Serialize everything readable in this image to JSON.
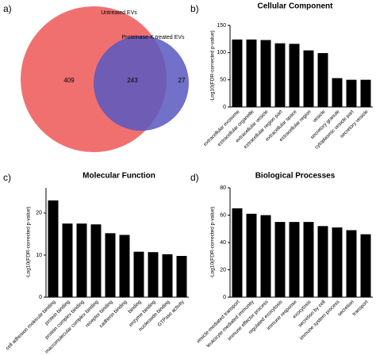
{
  "chart_data": [
    {
      "type": "venn",
      "panel_label": "a)",
      "sets": [
        {
          "name": "Untreated EVs",
          "color": "#f07070"
        },
        {
          "name": "Proteinase-K treated EVs",
          "color": "#5858bf"
        }
      ],
      "regions": [
        "Untreated EVs only",
        "both",
        "Proteinase-K treated EVs only"
      ],
      "values": [
        409,
        243,
        27
      ]
    },
    {
      "type": "bar",
      "panel_label": "b)",
      "title": "Cellular Component",
      "y_label": "-Log10(FDR-corrected p-value)",
      "categories": [
        "extracellular exosome",
        "extracellular organelle",
        "extracellular vesicle",
        "extracellular region part",
        "extracellular space",
        "extracellular region",
        "vesicle",
        "secretory granule",
        "cytoplasmic vesicle part",
        "secretory vesicle"
      ],
      "values": [
        124,
        124,
        123,
        117,
        116,
        104,
        99,
        53,
        50,
        50
      ],
      "color": "#000000",
      "ylim": [
        0,
        150
      ],
      "yticks": [
        0,
        50,
        100,
        150
      ]
    },
    {
      "type": "bar",
      "panel_label": "c)",
      "title": "Molecular Function",
      "y_label": "-Log10(FDR-corrected p-value)",
      "categories": [
        "cell adhesion molecule binding",
        "protein binding",
        "protein complex binding",
        "macromolecular complex binding",
        "receptor binding",
        "cadherin binding",
        "binding",
        "enzyme binding",
        "nucleoside binding",
        "GTPase activity"
      ],
      "values": [
        23,
        17.5,
        17.5,
        17.3,
        15.2,
        14.8,
        10.8,
        10.7,
        10.2,
        9.8
      ],
      "color": "#000000",
      "ylim": [
        0,
        26
      ],
      "yticks": [
        0,
        10,
        20
      ]
    },
    {
      "type": "bar",
      "panel_label": "d)",
      "title": "Biological Processes",
      "y_label": "-Log10(FDR-corrected p-value)",
      "categories": [
        "vesicle-mediated transport",
        "leukocyte mediated immunity",
        "immune effector process",
        "regulated exocytosis",
        "immune response",
        "exocytosis",
        "secretion by cell",
        "immune system process",
        "secretion",
        "transport"
      ],
      "values": [
        65,
        61,
        60,
        55,
        55,
        55,
        52,
        51,
        49,
        46
      ],
      "color": "#000000",
      "ylim": [
        0,
        80
      ],
      "yticks": [
        0,
        20,
        40,
        60,
        80
      ]
    }
  ]
}
